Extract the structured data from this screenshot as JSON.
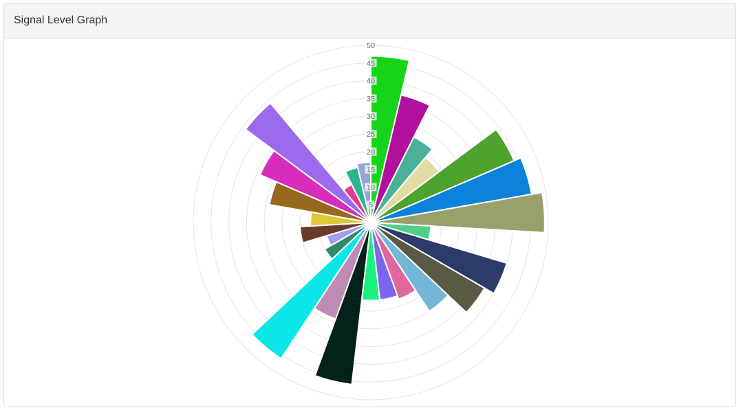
{
  "panel": {
    "title": "Signal Level Graph"
  },
  "chart_data": {
    "type": "polarArea",
    "title": "",
    "rlim": [
      0,
      50
    ],
    "ticks": [
      5,
      10,
      15,
      20,
      25,
      30,
      35,
      40,
      45,
      50
    ],
    "grid": true,
    "legend": "none",
    "values": [
      47,
      37,
      27,
      24,
      44,
      46,
      49,
      17,
      40,
      37,
      30,
      23,
      22,
      22,
      46,
      29,
      46,
      15,
      13,
      20,
      17,
      29,
      34,
      44,
      12,
      16,
      17
    ],
    "colors": [
      "#16d41a",
      "#b0109e",
      "#4bb09a",
      "#e0dca4",
      "#4ea22e",
      "#0d82dc",
      "#98a06c",
      "#4cd08a",
      "#2c3a6c",
      "#5a5a44",
      "#74b6d8",
      "#e066a0",
      "#7c66ec",
      "#1cf07c",
      "#03221a",
      "#be8ab6",
      "#0ce6e6",
      "#2e8a6a",
      "#a49cf4",
      "#6c3a2c",
      "#dcc83a",
      "#98681e",
      "#d82cbc",
      "#9c6aec",
      "#e63a8a",
      "#2eb48c",
      "#9aa4d8"
    ]
  }
}
